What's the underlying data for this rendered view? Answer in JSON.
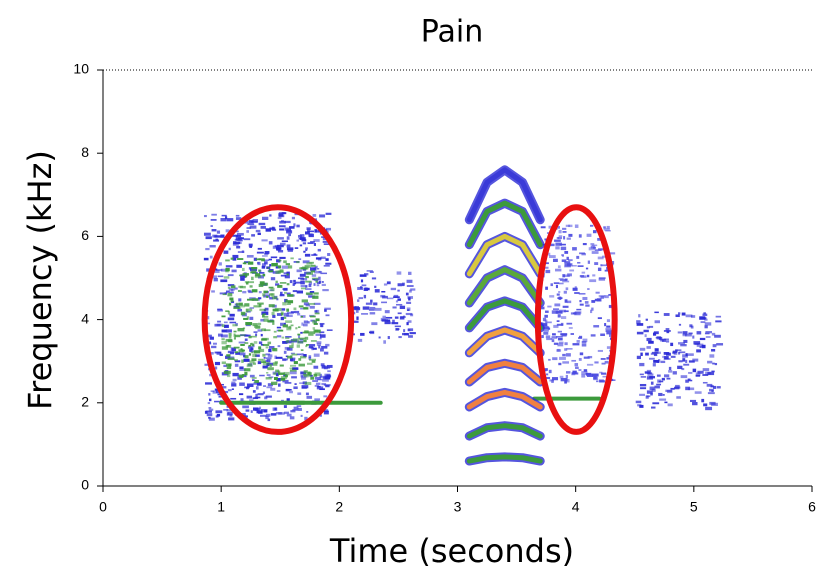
{
  "chart_data": {
    "type": "spectrogram",
    "title": "Pain",
    "x_label": "Time (seconds)",
    "y_label": "Frequency (kHz)",
    "xlim": [
      0,
      6
    ],
    "ylim": [
      0,
      10
    ],
    "xticks": [
      0,
      1,
      2,
      3,
      4,
      5,
      6
    ],
    "yticks": [
      0,
      2,
      4,
      6,
      8,
      10
    ],
    "x": [
      3.1,
      3.25,
      3.4,
      3.55,
      3.7
    ],
    "series": [
      {
        "color": "#3c9a3c",
        "values": [
          0.6,
          0.68,
          0.7,
          0.68,
          0.6
        ]
      },
      {
        "color": "#3c9a3c",
        "values": [
          1.2,
          1.4,
          1.45,
          1.4,
          1.2
        ]
      },
      {
        "color": "#f08040",
        "values": [
          1.9,
          2.15,
          2.25,
          2.15,
          1.9
        ]
      },
      {
        "color": "#f08040",
        "values": [
          2.5,
          2.85,
          2.95,
          2.85,
          2.5
        ]
      },
      {
        "color": "#f0a040",
        "values": [
          3.2,
          3.6,
          3.75,
          3.6,
          3.2
        ]
      },
      {
        "color": "#3c9a3c",
        "values": [
          3.8,
          4.3,
          4.45,
          4.3,
          3.8
        ]
      },
      {
        "color": "#5aa83a",
        "values": [
          4.4,
          5.0,
          5.2,
          5.0,
          4.4
        ]
      },
      {
        "color": "#d8c840",
        "values": [
          5.1,
          5.8,
          6.0,
          5.8,
          5.1
        ]
      },
      {
        "color": "#3c9a3c",
        "values": [
          5.8,
          6.6,
          6.8,
          6.6,
          5.8
        ]
      },
      {
        "color": "#3a3ad8",
        "values": [
          6.4,
          7.3,
          7.6,
          7.3,
          6.4
        ]
      }
    ],
    "clusters": [
      {
        "x": [
          0.85,
          1.9
        ],
        "y": [
          1.6,
          6.6
        ],
        "color": "#2b2bd6"
      },
      {
        "x": [
          1.0,
          1.8
        ],
        "y": [
          2.5,
          5.5
        ],
        "color": "#3c9a3c"
      },
      {
        "x": [
          2.1,
          2.6
        ],
        "y": [
          3.5,
          5.2
        ],
        "color": "#2b2bd6"
      },
      {
        "x": [
          3.7,
          4.3
        ],
        "y": [
          2.5,
          6.3
        ],
        "color": "#4a4ae0"
      },
      {
        "x": [
          4.5,
          5.2
        ],
        "y": [
          1.9,
          4.2
        ],
        "color": "#2b2bd6"
      }
    ],
    "bands": [
      {
        "x": [
          1.55,
          2.35
        ],
        "y": 2.0,
        "color": "#3c9a3c"
      },
      {
        "x": [
          1.0,
          1.7
        ],
        "y": 2.0,
        "color": "#3c9a3c"
      },
      {
        "x": [
          3.65,
          4.2
        ],
        "y": 2.1,
        "color": "#3c9a3c"
      }
    ],
    "highlights": [
      {
        "x": [
          0.86,
          2.1
        ],
        "y": [
          1.3,
          6.7
        ],
        "color": "#e81010"
      },
      {
        "x": [
          3.68,
          4.33
        ],
        "y": [
          1.3,
          6.7
        ],
        "color": "#e81010"
      }
    ]
  }
}
